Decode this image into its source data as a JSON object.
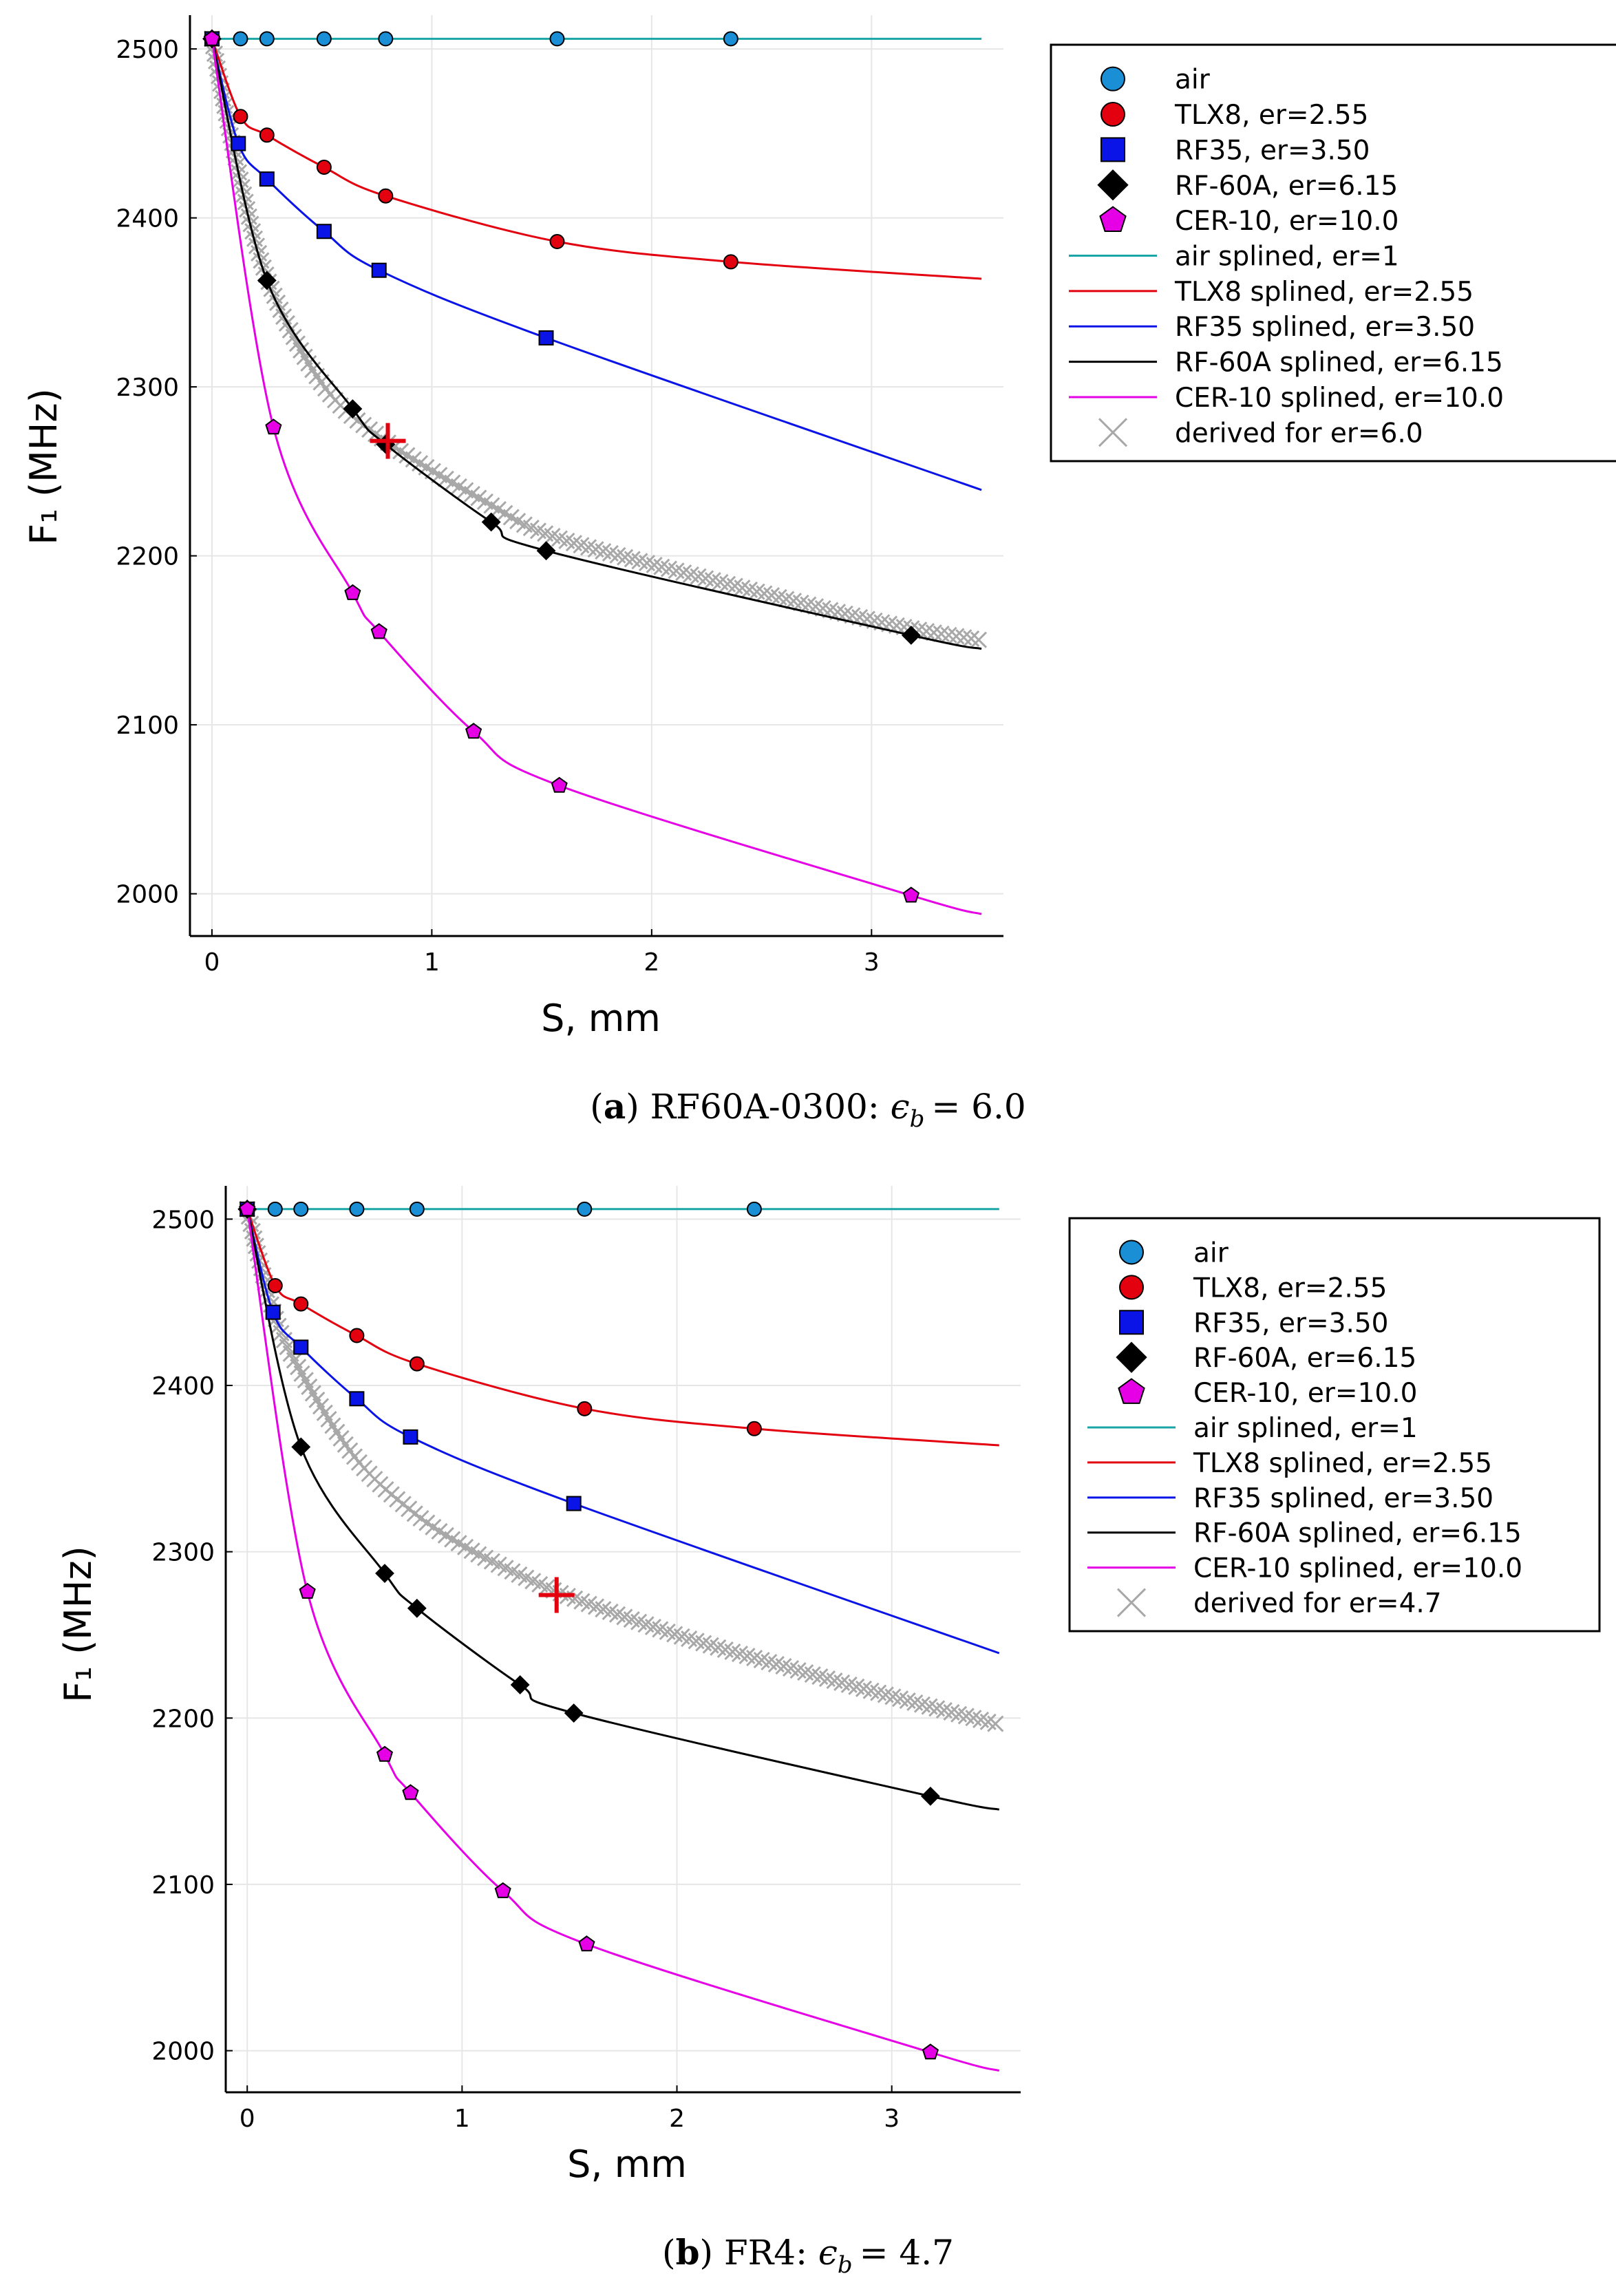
{
  "chart_data": [
    {
      "type": "line",
      "panel": "a",
      "caption": {
        "tag": "a",
        "material": "RF60A-0300:",
        "symbol": "ϵ",
        "subscript": "b",
        "equals": "= 6.0"
      },
      "xlabel": "S, mm",
      "ylabel": "F₁ (MHz)",
      "xlim": [
        -0.1,
        3.6
      ],
      "ylim": [
        1975,
        2520
      ],
      "xticks": [
        "0",
        "1",
        "2",
        "3"
      ],
      "yticks": [
        "2000",
        "2100",
        "2200",
        "2300",
        "2400",
        "2500"
      ],
      "legend_position": "outer-right-top",
      "marker_series": [
        {
          "name": "air",
          "color": "#1a8fd6",
          "marker": "circle",
          "x": [
            0,
            0.13,
            0.25,
            0.51,
            0.79,
            1.57,
            2.36
          ],
          "y": [
            2506,
            2506,
            2506,
            2506,
            2506,
            2506,
            2506
          ]
        },
        {
          "name": "TLX8, er=2.55",
          "color": "#e3000f",
          "marker": "circle",
          "x": [
            0,
            0.13,
            0.25,
            0.51,
            0.79,
            1.57,
            2.36
          ],
          "y": [
            2506,
            2460,
            2449,
            2430,
            2413,
            2386,
            2374
          ]
        },
        {
          "name": "RF35, er=3.50",
          "color": "#0a14e6",
          "marker": "square",
          "x": [
            0,
            0.12,
            0.25,
            0.51,
            0.76,
            1.52
          ],
          "y": [
            2506,
            2444,
            2423,
            2392,
            2369,
            2329
          ]
        },
        {
          "name": "RF-60A, er=6.15",
          "color": "#000000",
          "marker": "diamond",
          "x": [
            0,
            0.25,
            0.64,
            0.79,
            1.27,
            1.52,
            3.18
          ],
          "y": [
            2506,
            2363,
            2287,
            2266,
            2220,
            2203,
            2153
          ]
        },
        {
          "name": "CER-10, er=10.0",
          "color": "#e600e6",
          "marker": "pentagon",
          "x": [
            0,
            0.28,
            0.64,
            0.76,
            1.19,
            1.58,
            3.18
          ],
          "y": [
            2506,
            2276,
            2178,
            2155,
            2096,
            2064,
            1999
          ]
        }
      ],
      "spline_series": [
        {
          "name": "air splined, er=1",
          "color": "#1aa6a6",
          "x_end": 3.5,
          "y_end": 2506
        },
        {
          "name": "TLX8 splined, er=2.55",
          "color": "#e3000f",
          "x_end": 3.5,
          "y_end": 2364
        },
        {
          "name": "RF35 splined, er=3.50",
          "color": "#0a14e6",
          "x_end": 3.5,
          "y_end": 2239
        },
        {
          "name": "RF-60A splined, er=6.15",
          "color": "#000000",
          "x_end": 3.5,
          "y_end": 2145
        },
        {
          "name": "CER-10 splined, er=10.0",
          "color": "#e600e6",
          "x_end": 3.5,
          "y_end": 1988
        }
      ],
      "derived": {
        "name": "derived for er=6.0",
        "color": "#a8a8a8",
        "marker": "x",
        "x": [
          0,
          0.1,
          0.25,
          0.5,
          0.79,
          1.27,
          1.52,
          2.0,
          3.0,
          3.5
        ],
        "y": [
          2506,
          2440,
          2365,
          2302,
          2268,
          2230,
          2213,
          2195,
          2162,
          2150
        ]
      },
      "marker_point": {
        "x": 0.8,
        "y": 2268,
        "color": "#e3000f"
      }
    },
    {
      "type": "line",
      "panel": "b",
      "caption": {
        "tag": "b",
        "material": "FR4:",
        "symbol": "ϵ",
        "subscript": "b",
        "equals": "= 4.7"
      },
      "xlabel": "S, mm",
      "ylabel": "F₁ (MHz)",
      "xlim": [
        -0.1,
        3.6
      ],
      "ylim": [
        1975,
        2520
      ],
      "xticks": [
        "0",
        "1",
        "2",
        "3"
      ],
      "yticks": [
        "2000",
        "2100",
        "2200",
        "2300",
        "2400",
        "2500"
      ],
      "legend_position": "outer-right-top",
      "marker_series": [
        {
          "name": "air",
          "color": "#1a8fd6",
          "marker": "circle",
          "x": [
            0,
            0.13,
            0.25,
            0.51,
            0.79,
            1.57,
            2.36
          ],
          "y": [
            2506,
            2506,
            2506,
            2506,
            2506,
            2506,
            2506
          ]
        },
        {
          "name": "TLX8, er=2.55",
          "color": "#e3000f",
          "marker": "circle",
          "x": [
            0,
            0.13,
            0.25,
            0.51,
            0.79,
            1.57,
            2.36
          ],
          "y": [
            2506,
            2460,
            2449,
            2430,
            2413,
            2386,
            2374
          ]
        },
        {
          "name": "RF35, er=3.50",
          "color": "#0a14e6",
          "marker": "square",
          "x": [
            0,
            0.12,
            0.25,
            0.51,
            0.76,
            1.52
          ],
          "y": [
            2506,
            2444,
            2423,
            2392,
            2369,
            2329
          ]
        },
        {
          "name": "RF-60A, er=6.15",
          "color": "#000000",
          "marker": "diamond",
          "x": [
            0,
            0.25,
            0.64,
            0.79,
            1.27,
            1.52,
            3.18
          ],
          "y": [
            2506,
            2363,
            2287,
            2266,
            2220,
            2203,
            2153
          ]
        },
        {
          "name": "CER-10, er=10.0",
          "color": "#e600e6",
          "marker": "pentagon",
          "x": [
            0,
            0.28,
            0.64,
            0.76,
            1.19,
            1.58,
            3.18
          ],
          "y": [
            2506,
            2276,
            2178,
            2155,
            2096,
            2064,
            1999
          ]
        }
      ],
      "spline_series": [
        {
          "name": "air splined, er=1",
          "color": "#1aa6a6",
          "x_end": 3.5,
          "y_end": 2506
        },
        {
          "name": "TLX8 splined, er=2.55",
          "color": "#e3000f",
          "x_end": 3.5,
          "y_end": 2364
        },
        {
          "name": "RF35 splined, er=3.50",
          "color": "#0a14e6",
          "x_end": 3.5,
          "y_end": 2239
        },
        {
          "name": "RF-60A splined, er=6.15",
          "color": "#000000",
          "x_end": 3.5,
          "y_end": 2145
        },
        {
          "name": "CER-10 splined, er=10.0",
          "color": "#e600e6",
          "x_end": 3.5,
          "y_end": 1988
        }
      ],
      "derived": {
        "name": "derived for er=4.7",
        "color": "#a8a8a8",
        "marker": "x",
        "x": [
          0,
          0.12,
          0.25,
          0.5,
          0.76,
          1.0,
          1.27,
          1.52,
          2.0,
          2.5,
          3.0,
          3.5
        ],
        "y": [
          2506,
          2445,
          2408,
          2357,
          2325,
          2304,
          2286,
          2272,
          2250,
          2231,
          2213,
          2196
        ]
      },
      "marker_point": {
        "x": 1.44,
        "y": 2274,
        "color": "#e3000f"
      }
    }
  ]
}
